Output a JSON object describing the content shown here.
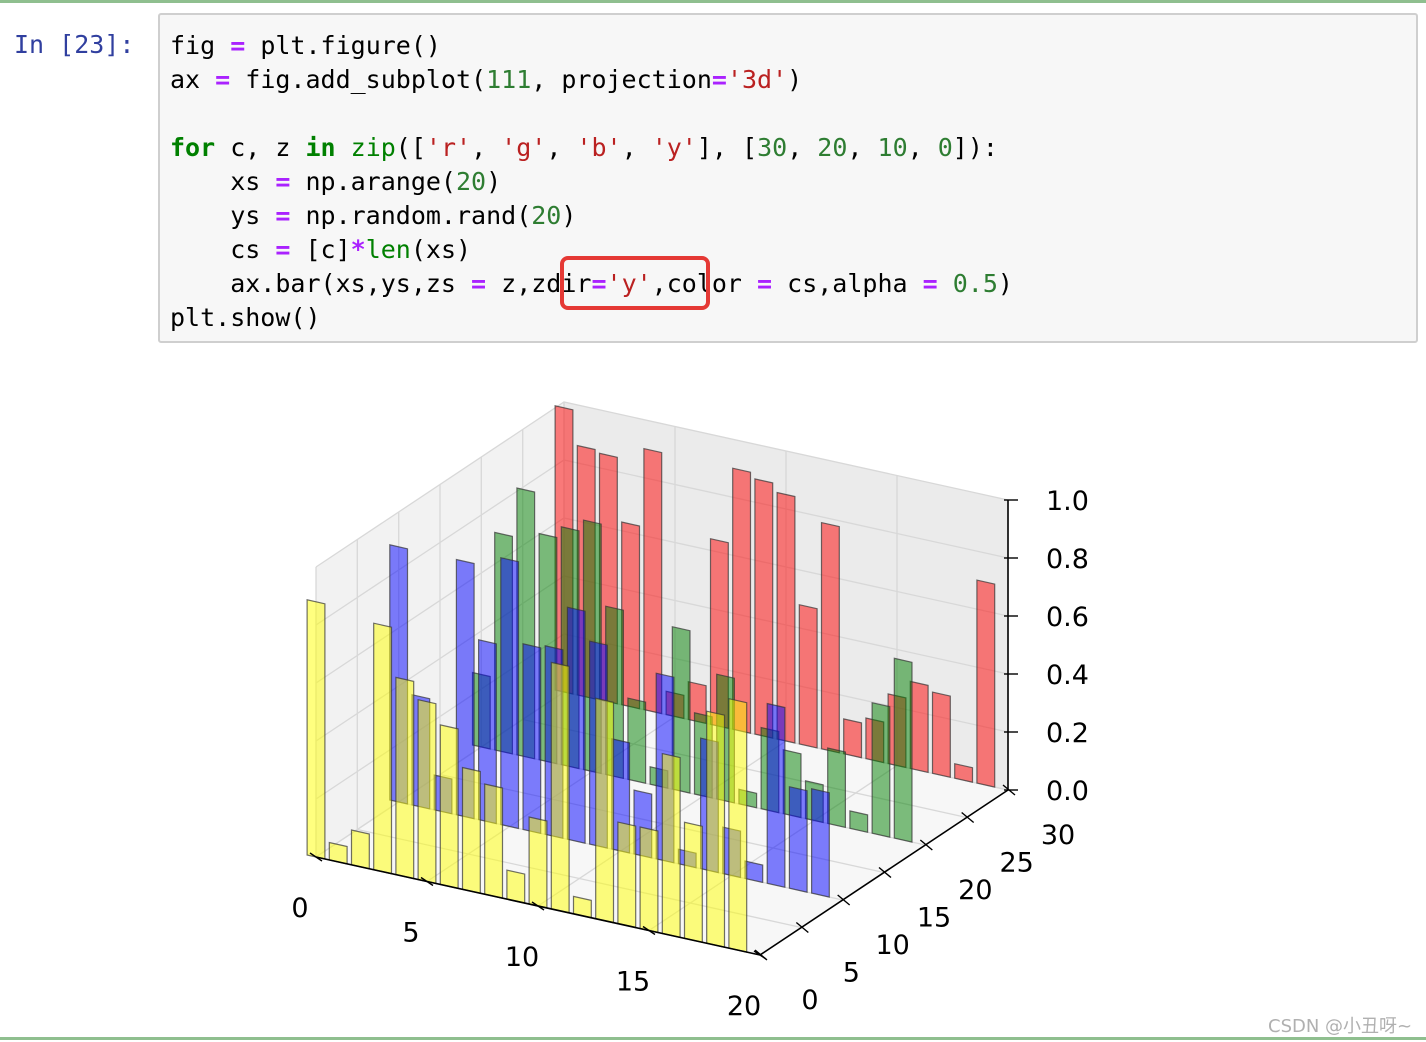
{
  "prompt": "In [23]:",
  "code": {
    "l1": [
      {
        "t": "fig "
      },
      {
        "t": "=",
        "c": "op"
      },
      {
        "t": " plt.figure()"
      }
    ],
    "l2": [
      {
        "t": "ax "
      },
      {
        "t": "=",
        "c": "op"
      },
      {
        "t": " fig.add_subplot("
      },
      {
        "t": "111",
        "c": "num"
      },
      {
        "t": ", projection"
      },
      {
        "t": "=",
        "c": "op"
      },
      {
        "t": "'3d'",
        "c": "str"
      },
      {
        "t": ")"
      }
    ],
    "l3": [],
    "l4": [
      {
        "t": "for",
        "c": "kw"
      },
      {
        "t": " c, z "
      },
      {
        "t": "in",
        "c": "kw"
      },
      {
        "t": " "
      },
      {
        "t": "zip",
        "c": "bi"
      },
      {
        "t": "(["
      },
      {
        "t": "'r'",
        "c": "str"
      },
      {
        "t": ", "
      },
      {
        "t": "'g'",
        "c": "str"
      },
      {
        "t": ", "
      },
      {
        "t": "'b'",
        "c": "str"
      },
      {
        "t": ", "
      },
      {
        "t": "'y'",
        "c": "str"
      },
      {
        "t": "], ["
      },
      {
        "t": "30",
        "c": "num"
      },
      {
        "t": ", "
      },
      {
        "t": "20",
        "c": "num"
      },
      {
        "t": ", "
      },
      {
        "t": "10",
        "c": "num"
      },
      {
        "t": ", "
      },
      {
        "t": "0",
        "c": "num"
      },
      {
        "t": "]):"
      }
    ],
    "l5": [
      {
        "t": "    xs "
      },
      {
        "t": "=",
        "c": "op"
      },
      {
        "t": " np.arange("
      },
      {
        "t": "20",
        "c": "num"
      },
      {
        "t": ")"
      }
    ],
    "l6": [
      {
        "t": "    ys "
      },
      {
        "t": "=",
        "c": "op"
      },
      {
        "t": " np.random.rand("
      },
      {
        "t": "20",
        "c": "num"
      },
      {
        "t": ")"
      }
    ],
    "l7": [
      {
        "t": "    cs "
      },
      {
        "t": "=",
        "c": "op"
      },
      {
        "t": " [c]"
      },
      {
        "t": "*",
        "c": "op"
      },
      {
        "t": "len",
        "c": "bi"
      },
      {
        "t": "(xs)"
      }
    ],
    "l8": [
      {
        "t": "    ax.bar(xs,ys,zs "
      },
      {
        "t": "=",
        "c": "op"
      },
      {
        "t": " z,zdir"
      },
      {
        "t": "=",
        "c": "op"
      },
      {
        "t": "'y'",
        "c": "str"
      },
      {
        "t": ",color "
      },
      {
        "t": "=",
        "c": "op"
      },
      {
        "t": " cs,alpha "
      },
      {
        "t": "=",
        "c": "op"
      },
      {
        "t": " "
      },
      {
        "t": "0.5",
        "c": "num"
      },
      {
        "t": ")"
      }
    ],
    "l9": [
      {
        "t": "plt.show()"
      }
    ]
  },
  "chart_data": {
    "type": "bar3d",
    "xlim": [
      0,
      20
    ],
    "ylim": [
      0,
      30
    ],
    "zlim": [
      0,
      1
    ],
    "x_ticks": [
      "0",
      "5",
      "10",
      "15",
      "20"
    ],
    "y_ticks": [
      "0",
      "5",
      "10",
      "15",
      "20",
      "25",
      "30"
    ],
    "z_ticks": [
      "0.0",
      "0.2",
      "0.4",
      "0.6",
      "0.8",
      "1.0"
    ],
    "x": [
      0,
      1,
      2,
      3,
      4,
      5,
      6,
      7,
      8,
      9,
      10,
      11,
      12,
      13,
      14,
      15,
      16,
      17,
      18,
      19
    ],
    "series": [
      {
        "z": 30,
        "color": "#ff0000",
        "values": [
          0.98,
          0.86,
          0.85,
          0.63,
          0.9,
          0.08,
          0.13,
          0.64,
          0.9,
          0.88,
          0.85,
          0.48,
          0.78,
          0.12,
          0.14,
          0.24,
          0.3,
          0.28,
          0.05,
          0.7
        ]
      },
      {
        "z": 20,
        "color": "#008000",
        "values": [
          0.25,
          0.75,
          0.92,
          0.78,
          0.82,
          0.86,
          0.58,
          0.28,
          0.06,
          0.56,
          0.28,
          0.43,
          0.05,
          0.28,
          0.22,
          0.13,
          0.26,
          0.06,
          0.45,
          0.62
        ]
      },
      {
        "z": 10,
        "color": "#0000ff",
        "values": [
          0.88,
          0.38,
          0.12,
          0.88,
          0.62,
          0.92,
          0.64,
          0.65,
          0.8,
          0.7,
          0.38,
          0.22,
          0.64,
          0.05,
          0.45,
          0.16,
          0.06,
          0.62,
          0.35,
          0.36
        ]
      },
      {
        "z": 0,
        "color": "#ffff00",
        "values": [
          0.88,
          0.06,
          0.12,
          0.85,
          0.68,
          0.62,
          0.55,
          0.42,
          0.38,
          0.1,
          0.3,
          0.85,
          0.06,
          0.76,
          0.35,
          0.35,
          0.62,
          0.4,
          0.8,
          0.86
        ]
      }
    ],
    "alpha": 0.5
  },
  "watermark": "CSDN @小丑呀~"
}
